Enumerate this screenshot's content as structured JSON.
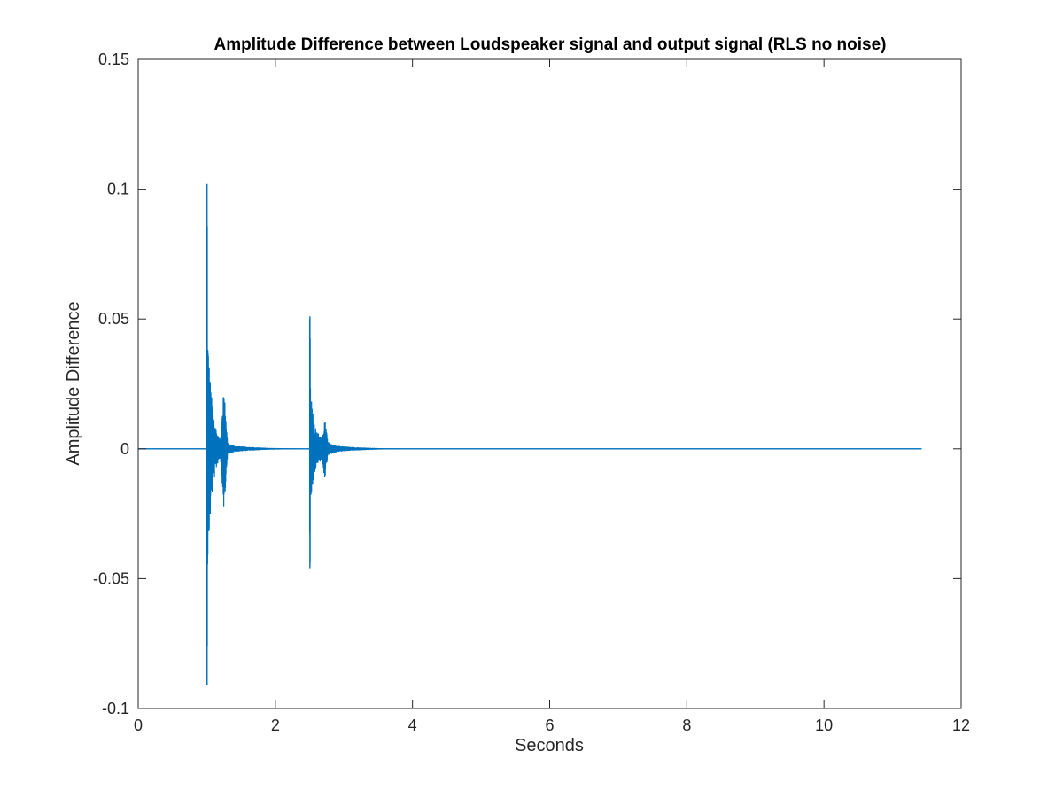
{
  "chart_data": {
    "type": "line",
    "title": "Amplitude Difference between Loudspeaker signal and output signal (RLS no noise)",
    "xlabel": "Seconds",
    "ylabel": "Amplitude Difference",
    "xlim": [
      0,
      12
    ],
    "ylim": [
      -0.1,
      0.15
    ],
    "xticks": [
      0,
      2,
      4,
      6,
      8,
      10,
      12
    ],
    "yticks": [
      -0.1,
      -0.05,
      0,
      0.05,
      0.1,
      0.15
    ],
    "xtick_labels": [
      "0",
      "2",
      "4",
      "6",
      "8",
      "10",
      "12"
    ],
    "ytick_labels": [
      "-0.1",
      "-0.05",
      "0",
      "0.05",
      "0.1",
      "0.15"
    ],
    "grid": false,
    "line_color": "#0072bd",
    "signal_end": 11.42,
    "bursts": [
      {
        "start": 1.0,
        "peak_max": 0.102,
        "peak_min": -0.091,
        "secondary": [
          {
            "x": 1.25,
            "max": 0.024,
            "min": -0.024
          }
        ],
        "decay_end": 2.2
      },
      {
        "start": 2.5,
        "peak_max": 0.051,
        "peak_min": -0.046,
        "secondary": [
          {
            "x": 2.72,
            "max": 0.012,
            "min": -0.012
          }
        ],
        "decay_end": 3.6
      }
    ]
  }
}
